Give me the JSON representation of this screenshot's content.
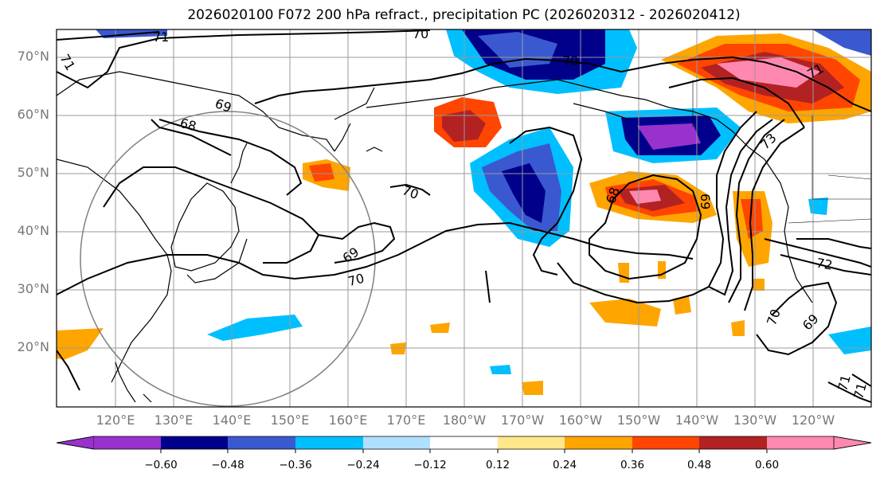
{
  "title": "2026020100 F072 200 hPa refract., precipitation PC (2026020312 - 2026020412)",
  "lat_labels": [
    "70°N",
    "60°N",
    "50°N",
    "40°N",
    "30°N",
    "20°N"
  ],
  "lon_labels": [
    "120°E",
    "130°E",
    "140°E",
    "150°E",
    "160°E",
    "170°E",
    "180°W",
    "170°W",
    "160°W",
    "150°W",
    "140°W",
    "130°W",
    "120°W"
  ],
  "colorbar": {
    "ticks": [
      "−0.60",
      "−0.48",
      "−0.36",
      "−0.24",
      "−0.12",
      "0.12",
      "0.24",
      "0.36",
      "0.48",
      "0.60"
    ],
    "colors": [
      "#9932cc",
      "#00008b",
      "#3a59d0",
      "#00bfff",
      "#b0e0ff",
      "#ffffff",
      "#ffe88a",
      "#ffa500",
      "#ff4500",
      "#b22222",
      "#ff88b0"
    ]
  },
  "contour_labels": [
    "71",
    "71",
    "70",
    "69",
    "68",
    "70",
    "71",
    "69",
    "70",
    "70",
    "68",
    "69",
    "70",
    "69",
    "73",
    "72",
    "71",
    "71"
  ]
}
